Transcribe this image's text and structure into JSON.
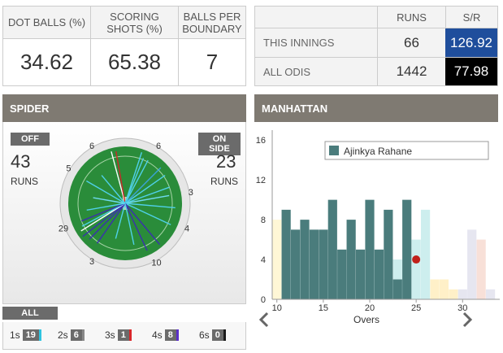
{
  "stats": {
    "headers": [
      "DOT BALLS (%)",
      "SCORING SHOTS (%)",
      "BALLS PER BOUNDARY"
    ],
    "values": [
      "34.62",
      "65.38",
      "7"
    ]
  },
  "runs_table": {
    "col_runs": "RUNS",
    "col_sr": "S/R",
    "rows": [
      {
        "label": "THIS INNINGS",
        "runs": "66",
        "sr": "126.92",
        "sr_color": "#1f4e9c"
      },
      {
        "label": "ALL ODIS",
        "runs": "1442",
        "sr": "77.98",
        "sr_color": "#000000"
      }
    ]
  },
  "spider": {
    "title": "SPIDER",
    "off_label": "OFF",
    "off_runs": "43",
    "on_label": "ON SIDE",
    "on_runs": "23",
    "runs_word": "RUNS",
    "ring_numbers": [
      "6",
      "6",
      "3",
      "4",
      "10",
      "3",
      "29",
      "5"
    ],
    "all_label": "ALL",
    "counts": [
      {
        "label": "1s",
        "value": "19",
        "color": "#2ec4e0"
      },
      {
        "label": "2s",
        "value": "6",
        "color": "#888888"
      },
      {
        "label": "3s",
        "value": "1",
        "color": "#d9262a"
      },
      {
        "label": "4s",
        "value": "8",
        "color": "#5b2fc9"
      },
      {
        "label": "6s",
        "value": "0",
        "color": "#1a1a1a"
      }
    ]
  },
  "manhattan": {
    "title": "MANHATTAN",
    "chart_data": {
      "type": "bar",
      "xlabel": "Overs",
      "ylabel": "",
      "legend": "top",
      "xlim": [
        9.5,
        34
      ],
      "ylim": [
        0,
        17
      ],
      "xticks": [
        10,
        15,
        20,
        25,
        30
      ],
      "yticks": [
        0,
        4,
        8,
        12,
        16
      ],
      "series": [
        {
          "name": "Ajinkya Rahane",
          "color": "#4a7c7c",
          "x": [
            11,
            12,
            13,
            14,
            15,
            16,
            17,
            18,
            19,
            20,
            21,
            22,
            23,
            24
          ],
          "values": [
            9,
            7,
            8,
            7,
            7,
            10,
            5,
            8,
            5,
            10,
            5,
            9,
            2,
            10
          ]
        }
      ],
      "team_bars": {
        "x": [
          10,
          11,
          12,
          13,
          14,
          15,
          16,
          17,
          18,
          19,
          20,
          21,
          22,
          23,
          24,
          25,
          26,
          27,
          28,
          29,
          30,
          31,
          32,
          33
        ],
        "values": [
          8,
          5,
          4,
          5,
          3,
          4,
          2,
          3,
          2,
          2,
          3,
          3,
          2,
          4,
          3,
          6,
          9,
          2,
          2,
          1,
          1,
          7,
          6,
          1
        ],
        "colors": [
          "#fff7d6",
          "#cdeeee",
          "#cdeeee",
          "#cdeeee",
          "#cdeeee",
          "#cdeeee",
          "#cdeeee",
          "#cdeeee",
          "#cdeeee",
          "#cdeeee",
          "#cdeeee",
          "#cdeeee",
          "#cdeeee",
          "#cdeeee",
          "#cdeeee",
          "#cdeeee",
          "#cdeeee",
          "#fff0c8",
          "#fff0c8",
          "#fff0c8",
          "#e6e6f0",
          "#e6e6f0",
          "#f8e0d8",
          "#e6e6f0"
        ]
      },
      "wicket_over": 25
    }
  }
}
